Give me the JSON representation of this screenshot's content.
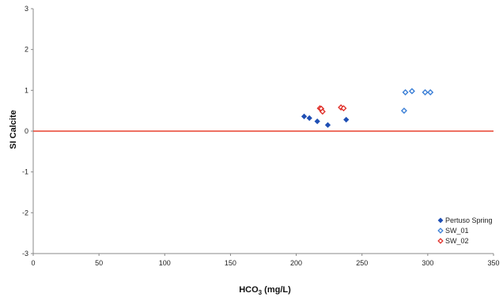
{
  "chart_data": {
    "type": "scatter",
    "title": "",
    "xlabel": {
      "main": "HCO",
      "sub": "3",
      "unit": " (mg/L)"
    },
    "ylabel": "SI Calcite",
    "xlim": [
      0,
      350
    ],
    "ylim": [
      -3,
      3
    ],
    "xticks": [
      0,
      50,
      100,
      150,
      200,
      250,
      300,
      350
    ],
    "yticks": [
      -3,
      -2,
      -1,
      0,
      1,
      2,
      3
    ],
    "grid": false,
    "legend_position": "bottom-right",
    "reference_line": {
      "y": 0,
      "color": "#e8412f"
    },
    "series": [
      {
        "name": "Pertuso Spring",
        "marker": "diamond-filled",
        "color": "#1f4fb4",
        "points": [
          {
            "x": 206,
            "y": 0.36
          },
          {
            "x": 210,
            "y": 0.32
          },
          {
            "x": 216,
            "y": 0.24
          },
          {
            "x": 224,
            "y": 0.15
          },
          {
            "x": 238,
            "y": 0.28
          }
        ]
      },
      {
        "name": "SW_01",
        "marker": "diamond-open",
        "color": "#3b7fd6",
        "points": [
          {
            "x": 282,
            "y": 0.5
          },
          {
            "x": 283,
            "y": 0.95
          },
          {
            "x": 288,
            "y": 0.98
          },
          {
            "x": 298,
            "y": 0.95
          },
          {
            "x": 302,
            "y": 0.95
          }
        ]
      },
      {
        "name": "SW_02",
        "marker": "diamond-open",
        "color": "#e0302a",
        "points": [
          {
            "x": 218,
            "y": 0.56
          },
          {
            "x": 219,
            "y": 0.55
          },
          {
            "x": 220,
            "y": 0.48
          },
          {
            "x": 234,
            "y": 0.58
          },
          {
            "x": 236,
            "y": 0.56
          }
        ]
      }
    ]
  }
}
